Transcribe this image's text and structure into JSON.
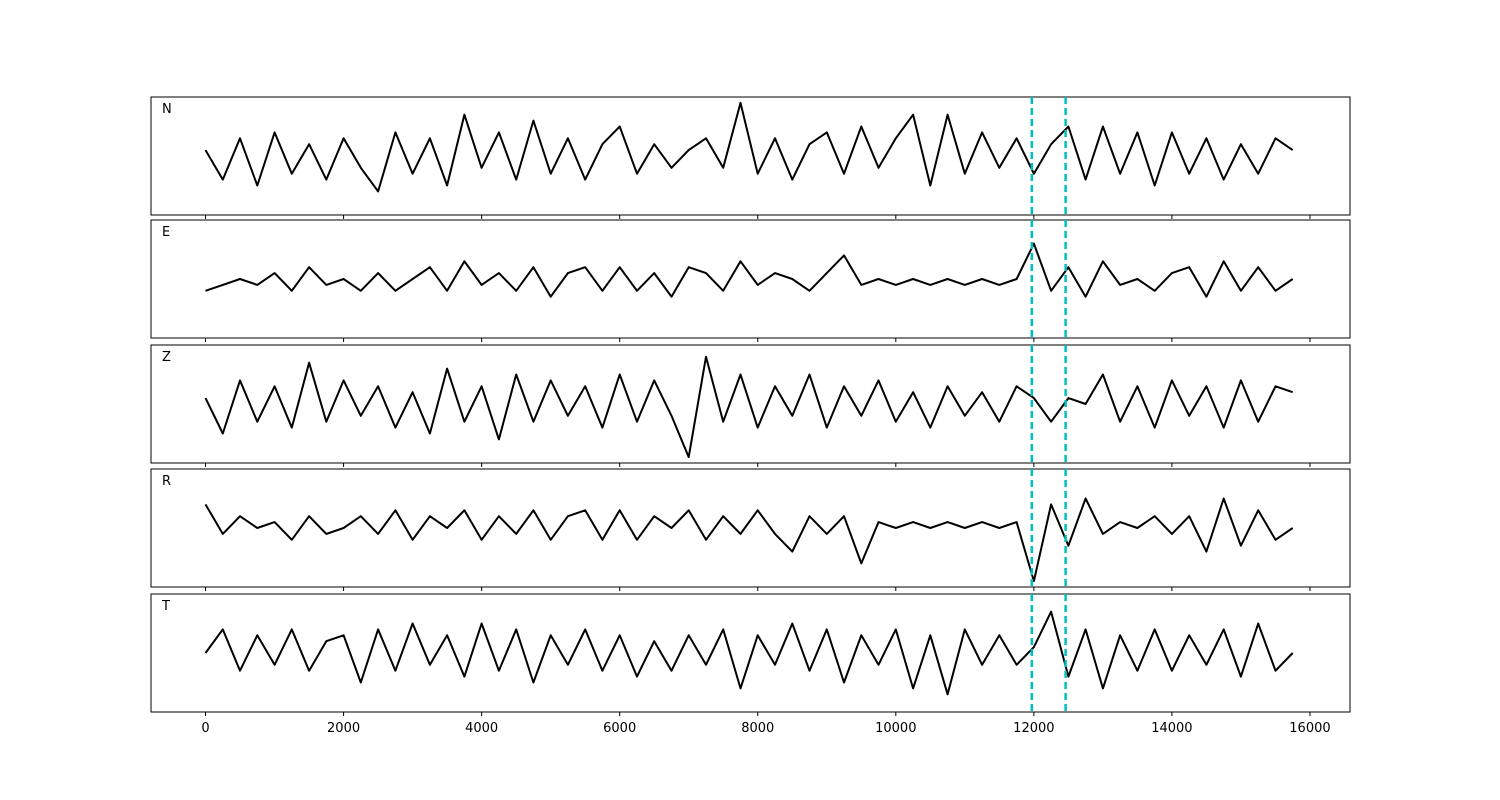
{
  "chart_data": [
    {
      "type": "line",
      "label": "N",
      "color": "#000000",
      "xlim": [
        -790,
        16580
      ],
      "ylim": [
        -1,
        1
      ],
      "xticks": [
        0,
        2000,
        4000,
        6000,
        8000,
        10000,
        12000,
        14000,
        16000
      ],
      "vlines": [
        11970,
        12460
      ],
      "vline_color": "#00bfbf",
      "x": [
        0,
        250,
        500,
        750,
        1000,
        1250,
        1500,
        1750,
        2000,
        2250,
        2500,
        2750,
        3000,
        3250,
        3500,
        3750,
        4000,
        4250,
        4500,
        4750,
        5000,
        5250,
        5500,
        5750,
        6000,
        6250,
        6500,
        6750,
        7000,
        7250,
        7500,
        7750,
        8000,
        8250,
        8500,
        8750,
        9000,
        9250,
        9500,
        9750,
        10000,
        10250,
        10500,
        10750,
        11000,
        11250,
        11500,
        11750,
        12000,
        12250,
        12500,
        12750,
        13000,
        13250,
        13500,
        13750,
        14000,
        14250,
        14500,
        14750,
        15000,
        15250,
        15500,
        15750
      ],
      "values": [
        0.1,
        -0.4,
        0.3,
        -0.5,
        0.4,
        -0.3,
        0.2,
        -0.4,
        0.3,
        -0.2,
        -0.6,
        0.4,
        -0.3,
        0.3,
        -0.5,
        0.7,
        -0.2,
        0.4,
        -0.4,
        0.6,
        -0.3,
        0.3,
        -0.4,
        0.2,
        0.5,
        -0.3,
        0.2,
        -0.2,
        0.1,
        0.3,
        -0.2,
        0.9,
        -0.3,
        0.3,
        -0.4,
        0.2,
        0.4,
        -0.3,
        0.5,
        -0.2,
        0.3,
        0.7,
        -0.5,
        0.7,
        -0.3,
        0.4,
        -0.2,
        0.3,
        -0.3,
        0.2,
        0.5,
        -0.4,
        0.5,
        -0.3,
        0.4,
        -0.5,
        0.4,
        -0.3,
        0.3,
        -0.4,
        0.2,
        -0.3,
        0.3,
        0.1
      ]
    },
    {
      "type": "line",
      "label": "E",
      "color": "#000000",
      "xlim": [
        -790,
        16580
      ],
      "ylim": [
        -1,
        1
      ],
      "xticks": [
        0,
        2000,
        4000,
        6000,
        8000,
        10000,
        12000,
        14000,
        16000
      ],
      "vlines": [
        11970,
        12460
      ],
      "vline_color": "#00bfbf",
      "x": [
        0,
        250,
        500,
        750,
        1000,
        1250,
        1500,
        1750,
        2000,
        2250,
        2500,
        2750,
        3000,
        3250,
        3500,
        3750,
        4000,
        4250,
        4500,
        4750,
        5000,
        5250,
        5500,
        5750,
        6000,
        6250,
        6500,
        6750,
        7000,
        7250,
        7500,
        7750,
        8000,
        8250,
        8500,
        8750,
        9000,
        9250,
        9500,
        9750,
        10000,
        10250,
        10500,
        10750,
        11000,
        11250,
        11500,
        11750,
        12000,
        12250,
        12500,
        12750,
        13000,
        13250,
        13500,
        13750,
        14000,
        14250,
        14500,
        14750,
        15000,
        15250,
        15500,
        15750
      ],
      "values": [
        -0.2,
        -0.1,
        0.0,
        -0.1,
        0.1,
        -0.2,
        0.2,
        -0.1,
        0.0,
        -0.2,
        0.1,
        -0.2,
        0.0,
        0.2,
        -0.2,
        0.3,
        -0.1,
        0.1,
        -0.2,
        0.2,
        -0.3,
        0.1,
        0.2,
        -0.2,
        0.2,
        -0.2,
        0.1,
        -0.3,
        0.2,
        0.1,
        -0.2,
        0.3,
        -0.1,
        0.1,
        0.0,
        -0.2,
        0.1,
        0.4,
        -0.1,
        0.0,
        -0.1,
        0.0,
        -0.1,
        0.0,
        -0.1,
        0.0,
        -0.1,
        0.0,
        0.6,
        -0.2,
        0.2,
        -0.3,
        0.3,
        -0.1,
        0.0,
        -0.2,
        0.1,
        0.2,
        -0.3,
        0.3,
        -0.2,
        0.2,
        -0.2,
        0.0
      ]
    },
    {
      "type": "line",
      "label": "Z",
      "color": "#000000",
      "xlim": [
        -790,
        16580
      ],
      "ylim": [
        -1,
        1
      ],
      "xticks": [
        0,
        2000,
        4000,
        6000,
        8000,
        10000,
        12000,
        14000,
        16000
      ],
      "vlines": [
        11970,
        12460
      ],
      "vline_color": "#00bfbf",
      "x": [
        0,
        250,
        500,
        750,
        1000,
        1250,
        1500,
        1750,
        2000,
        2250,
        2500,
        2750,
        3000,
        3250,
        3500,
        3750,
        4000,
        4250,
        4500,
        4750,
        5000,
        5250,
        5500,
        5750,
        6000,
        6250,
        6500,
        6750,
        7000,
        7250,
        7500,
        7750,
        8000,
        8250,
        8500,
        8750,
        9000,
        9250,
        9500,
        9750,
        10000,
        10250,
        10500,
        10750,
        11000,
        11250,
        11500,
        11750,
        12000,
        12250,
        12500,
        12750,
        13000,
        13250,
        13500,
        13750,
        14000,
        14250,
        14500,
        14750,
        15000,
        15250,
        15500,
        15750
      ],
      "values": [
        0.1,
        -0.5,
        0.4,
        -0.3,
        0.3,
        -0.4,
        0.7,
        -0.3,
        0.4,
        -0.2,
        0.3,
        -0.4,
        0.2,
        -0.5,
        0.6,
        -0.3,
        0.3,
        -0.6,
        0.5,
        -0.3,
        0.4,
        -0.2,
        0.3,
        -0.4,
        0.5,
        -0.3,
        0.4,
        -0.2,
        -0.9,
        0.8,
        -0.3,
        0.5,
        -0.4,
        0.3,
        -0.2,
        0.5,
        -0.4,
        0.3,
        -0.2,
        0.4,
        -0.3,
        0.2,
        -0.4,
        0.3,
        -0.2,
        0.2,
        -0.3,
        0.3,
        0.1,
        -0.3,
        0.1,
        0.0,
        0.5,
        -0.3,
        0.3,
        -0.4,
        0.4,
        -0.2,
        0.3,
        -0.4,
        0.4,
        -0.3,
        0.3,
        0.2
      ]
    },
    {
      "type": "line",
      "label": "R",
      "color": "#000000",
      "xlim": [
        -790,
        16580
      ],
      "ylim": [
        -1,
        1
      ],
      "xticks": [
        0,
        2000,
        4000,
        6000,
        8000,
        10000,
        12000,
        14000,
        16000
      ],
      "vlines": [
        11970,
        12460
      ],
      "vline_color": "#00bfbf",
      "x": [
        0,
        250,
        500,
        750,
        1000,
        1250,
        1500,
        1750,
        2000,
        2250,
        2500,
        2750,
        3000,
        3250,
        3500,
        3750,
        4000,
        4250,
        4500,
        4750,
        5000,
        5250,
        5500,
        5750,
        6000,
        6250,
        6500,
        6750,
        7000,
        7250,
        7500,
        7750,
        8000,
        8250,
        8500,
        8750,
        9000,
        9250,
        9500,
        9750,
        10000,
        10250,
        10500,
        10750,
        11000,
        11250,
        11500,
        11750,
        12000,
        12250,
        12500,
        12750,
        13000,
        13250,
        13500,
        13750,
        14000,
        14250,
        14500,
        14750,
        15000,
        15250,
        15500,
        15750
      ],
      "values": [
        0.4,
        -0.1,
        0.2,
        0.0,
        0.1,
        -0.2,
        0.2,
        -0.1,
        0.0,
        0.2,
        -0.1,
        0.3,
        -0.2,
        0.2,
        0.0,
        0.3,
        -0.2,
        0.2,
        -0.1,
        0.3,
        -0.2,
        0.2,
        0.3,
        -0.2,
        0.3,
        -0.2,
        0.2,
        0.0,
        0.3,
        -0.2,
        0.2,
        -0.1,
        0.3,
        -0.1,
        -0.4,
        0.2,
        -0.1,
        0.2,
        -0.6,
        0.1,
        0.0,
        0.1,
        0.0,
        0.1,
        0.0,
        0.1,
        0.0,
        0.1,
        -0.9,
        0.4,
        -0.3,
        0.5,
        -0.1,
        0.1,
        0.0,
        0.2,
        -0.1,
        0.2,
        -0.4,
        0.5,
        -0.3,
        0.3,
        -0.2,
        0.0
      ]
    },
    {
      "type": "line",
      "label": "T",
      "color": "#000000",
      "xlim": [
        -790,
        16580
      ],
      "ylim": [
        -1,
        1
      ],
      "xticks": [
        0,
        2000,
        4000,
        6000,
        8000,
        10000,
        12000,
        14000,
        16000
      ],
      "vlines": [
        11970,
        12460
      ],
      "vline_color": "#00bfbf",
      "x": [
        0,
        250,
        500,
        750,
        1000,
        1250,
        1500,
        1750,
        2000,
        2250,
        2500,
        2750,
        3000,
        3250,
        3500,
        3750,
        4000,
        4250,
        4500,
        4750,
        5000,
        5250,
        5500,
        5750,
        6000,
        6250,
        6500,
        6750,
        7000,
        7250,
        7500,
        7750,
        8000,
        8250,
        8500,
        8750,
        9000,
        9250,
        9500,
        9750,
        10000,
        10250,
        10500,
        10750,
        11000,
        11250,
        11500,
        11750,
        12000,
        12250,
        12500,
        12750,
        13000,
        13250,
        13500,
        13750,
        14000,
        14250,
        14500,
        14750,
        15000,
        15250,
        15500,
        15750
      ],
      "values": [
        0.0,
        0.4,
        -0.3,
        0.3,
        -0.2,
        0.4,
        -0.3,
        0.2,
        0.3,
        -0.5,
        0.4,
        -0.3,
        0.5,
        -0.2,
        0.3,
        -0.4,
        0.5,
        -0.3,
        0.4,
        -0.5,
        0.3,
        -0.2,
        0.4,
        -0.3,
        0.3,
        -0.4,
        0.2,
        -0.3,
        0.3,
        -0.2,
        0.4,
        -0.6,
        0.3,
        -0.2,
        0.5,
        -0.3,
        0.4,
        -0.5,
        0.3,
        -0.2,
        0.4,
        -0.6,
        0.3,
        -0.7,
        0.4,
        -0.2,
        0.3,
        -0.2,
        0.1,
        0.7,
        -0.4,
        0.4,
        -0.6,
        0.3,
        -0.3,
        0.4,
        -0.3,
        0.3,
        -0.2,
        0.4,
        -0.4,
        0.5,
        -0.3,
        0.0
      ]
    }
  ]
}
